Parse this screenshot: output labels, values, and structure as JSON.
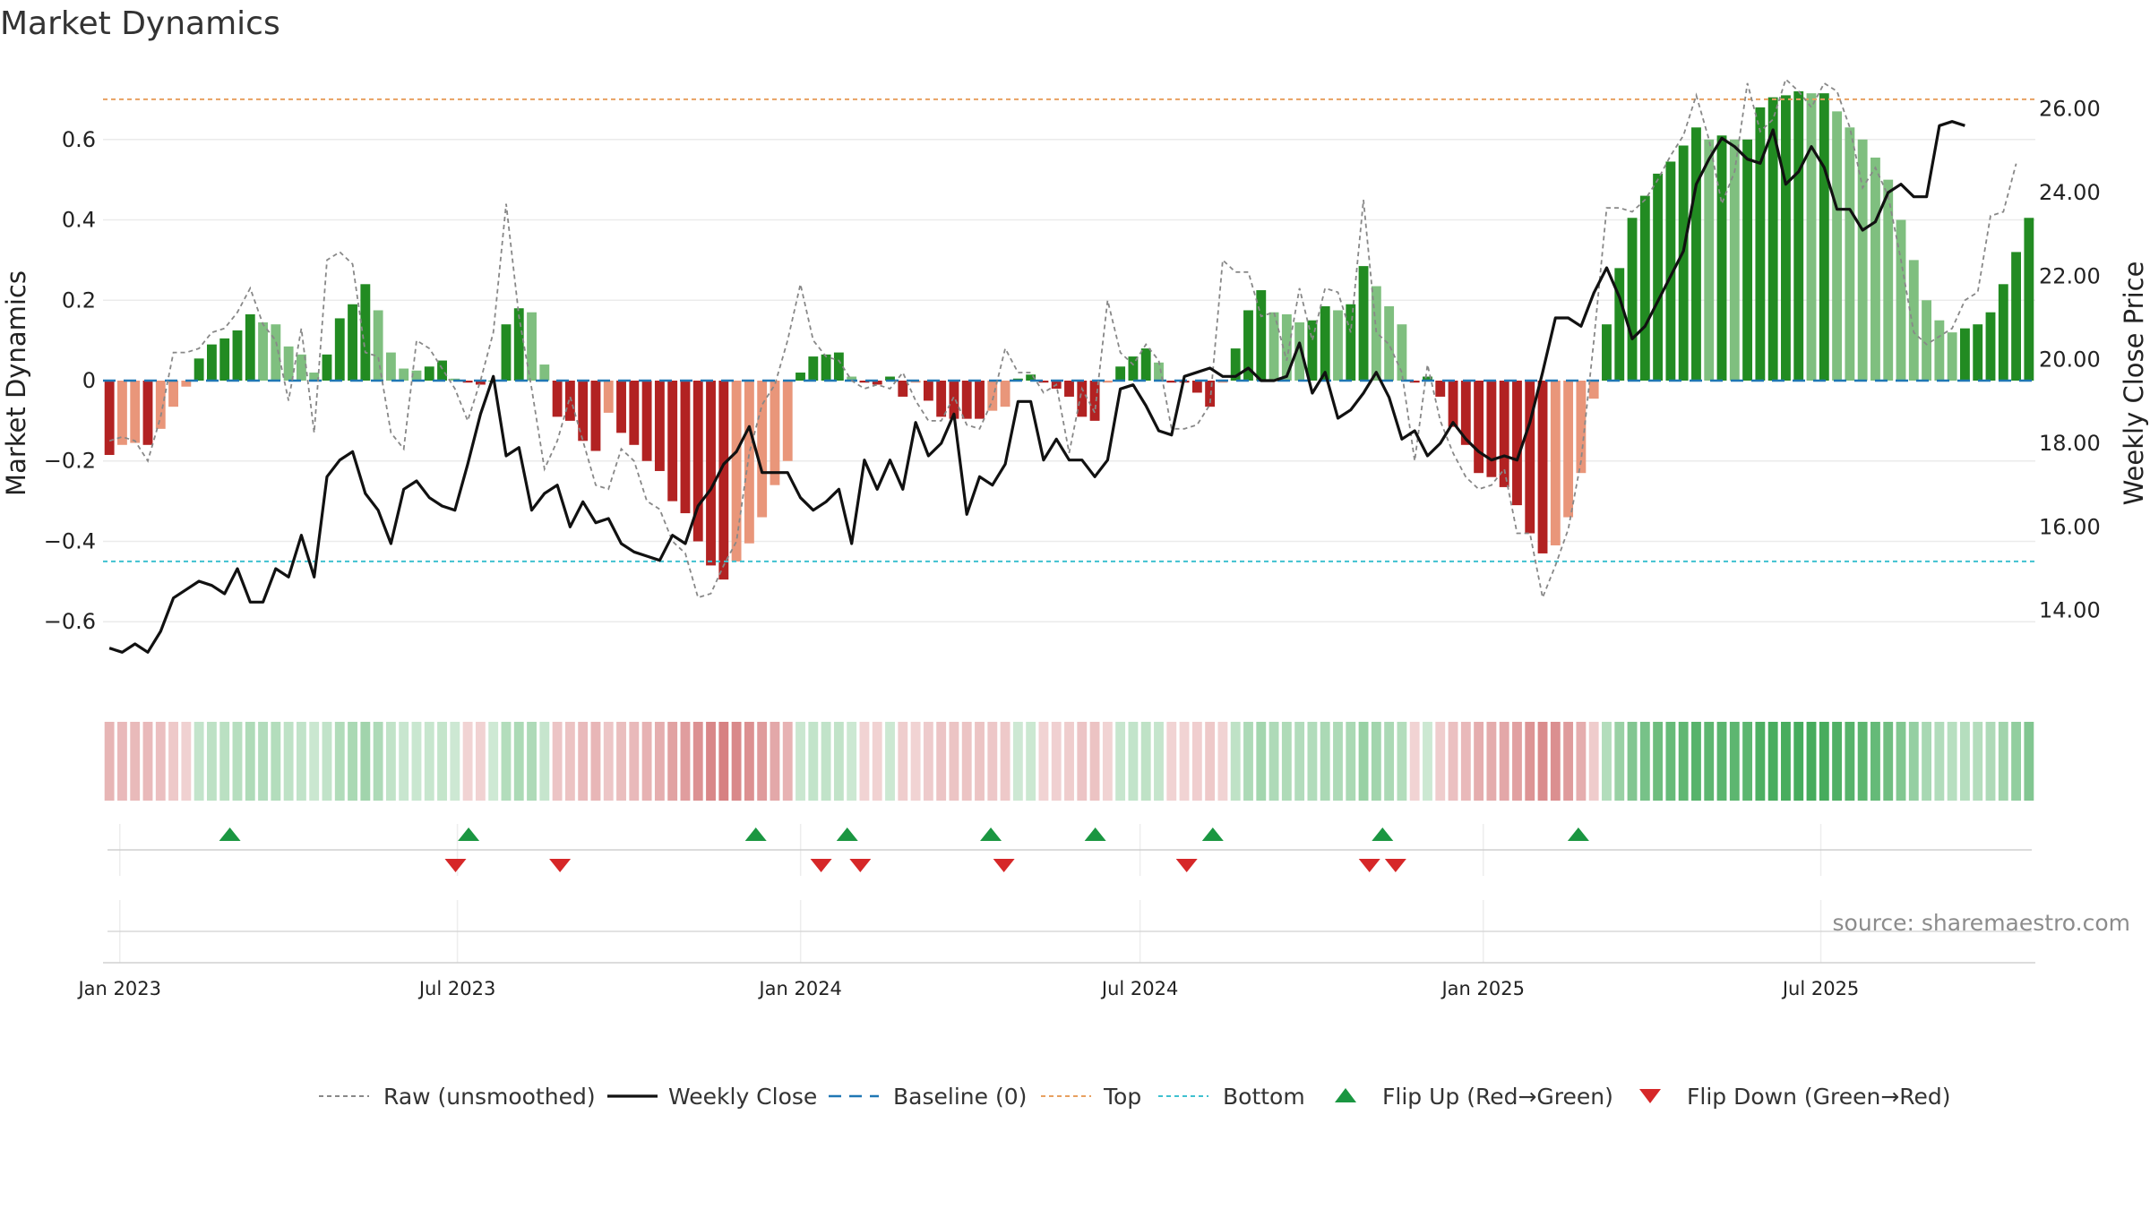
{
  "chart_data": {
    "type": "bar",
    "title": "Market Dynamics",
    "ylabel": "Market Dynamics",
    "y2label": "Weekly Close Price",
    "ylim": [
      -0.78,
      0.78
    ],
    "y2lim": [
      12.0,
      27.0
    ],
    "yticks": [
      -0.6,
      -0.4,
      -0.2,
      0,
      0.2,
      0.4,
      0.6
    ],
    "ytick_labels": [
      "−0.6",
      "−0.4",
      "−0.2",
      "0",
      "0.2",
      "0.4",
      "0.6"
    ],
    "y2ticks": [
      14,
      16,
      18,
      20,
      22,
      24,
      26
    ],
    "y2tick_labels": [
      "14.00",
      "16.00",
      "18.00",
      "20.00",
      "22.00",
      "24.00",
      "26.00"
    ],
    "x_start": "2022-12-23",
    "x_end": "2025-10-24",
    "x_ticks": [
      {
        "date": "2023-01-01",
        "label": "Jan 2023"
      },
      {
        "date": "2023-07-01",
        "label": "Jul 2023"
      },
      {
        "date": "2024-01-01",
        "label": "Jan 2024"
      },
      {
        "date": "2024-07-01",
        "label": "Jul 2024"
      },
      {
        "date": "2025-01-01",
        "label": "Jan 2025"
      },
      {
        "date": "2025-07-01",
        "label": "Jul 2025"
      }
    ],
    "top_level": 0.7,
    "bottom_level": -0.45,
    "source": "source: sharemaestro.com",
    "colors": {
      "up_strong": "#228B22",
      "up_weak": "#7FBF7F",
      "down_strong": "#B22222",
      "down_weak": "#E9967A",
      "close_line": "#111111",
      "raw_line": "#888888",
      "baseline": "#1f77b4",
      "top": "#e8a060",
      "bottom": "#3fc1d0",
      "flip_up": "#1a9641",
      "flip_down": "#d62728"
    },
    "legend": [
      {
        "key": "raw",
        "label": "Raw (unsmoothed)"
      },
      {
        "key": "close",
        "label": "Weekly Close"
      },
      {
        "key": "baseline",
        "label": "Baseline (0)"
      },
      {
        "key": "top",
        "label": "Top"
      },
      {
        "key": "bottom",
        "label": "Bottom"
      },
      {
        "key": "flip_up",
        "label": "Flip Up (Red→Green)"
      },
      {
        "key": "flip_down",
        "label": "Flip Down (Green→Red)"
      }
    ],
    "series": [
      {
        "name": "Market Dynamics",
        "values": [
          -0.185,
          -0.16,
          -0.155,
          -0.16,
          -0.12,
          -0.065,
          -0.015,
          0.055,
          0.09,
          0.105,
          0.125,
          0.165,
          0.145,
          0.14,
          0.085,
          0.065,
          0.02,
          0.065,
          0.155,
          0.19,
          0.24,
          0.175,
          0.07,
          0.03,
          0.025,
          0.035,
          0.05,
          0.005,
          -0.005,
          -0.01,
          0.0,
          0.14,
          0.18,
          0.17,
          0.04,
          -0.09,
          -0.1,
          -0.15,
          -0.175,
          -0.08,
          -0.13,
          -0.16,
          -0.2,
          -0.225,
          -0.3,
          -0.33,
          -0.4,
          -0.46,
          -0.495,
          -0.45,
          -0.405,
          -0.34,
          -0.26,
          -0.2,
          0.02,
          0.06,
          0.065,
          0.07,
          0.01,
          -0.005,
          -0.01,
          0.01,
          -0.04,
          -0.005,
          -0.05,
          -0.09,
          -0.095,
          -0.095,
          -0.095,
          -0.075,
          -0.065,
          0.005,
          0.015,
          -0.005,
          -0.02,
          -0.04,
          -0.09,
          -0.1,
          -0.005,
          0.035,
          0.06,
          0.08,
          0.045,
          -0.005,
          -0.005,
          -0.03,
          -0.065,
          -0.005,
          0.08,
          0.175,
          0.225,
          0.17,
          0.165,
          0.145,
          0.15,
          0.185,
          0.175,
          0.19,
          0.285,
          0.235,
          0.185,
          0.14,
          -0.005,
          0.01,
          -0.04,
          -0.115,
          -0.16,
          -0.23,
          -0.24,
          -0.265,
          -0.31,
          -0.38,
          -0.43,
          -0.41,
          -0.34,
          -0.23,
          -0.045,
          0.14,
          0.28,
          0.405,
          0.46,
          0.515,
          0.545,
          0.585,
          0.63,
          0.6,
          0.61,
          0.6,
          0.6,
          0.68,
          0.705,
          0.71,
          0.72,
          0.715,
          0.715,
          0.67,
          0.63,
          0.6,
          0.555,
          0.5,
          0.4,
          0.3,
          0.2,
          0.15,
          0.12,
          0.13,
          0.14,
          0.17,
          0.24,
          0.32,
          0.405
        ]
      },
      {
        "name": "Raw (unsmoothed)",
        "values": [
          -0.15,
          -0.14,
          -0.15,
          -0.2,
          -0.09,
          0.07,
          0.07,
          0.08,
          0.12,
          0.13,
          0.17,
          0.23,
          0.14,
          0.1,
          -0.05,
          0.13,
          -0.13,
          0.3,
          0.32,
          0.29,
          0.07,
          0.06,
          -0.13,
          -0.17,
          0.1,
          0.08,
          0.03,
          -0.02,
          -0.1,
          0.0,
          0.12,
          0.44,
          0.16,
          -0.02,
          -0.22,
          -0.15,
          -0.04,
          -0.15,
          -0.26,
          -0.27,
          -0.17,
          -0.2,
          -0.3,
          -0.32,
          -0.4,
          -0.43,
          -0.54,
          -0.53,
          -0.46,
          -0.4,
          -0.18,
          -0.06,
          -0.01,
          0.1,
          0.24,
          0.1,
          0.06,
          0.05,
          0.0,
          -0.02,
          -0.01,
          -0.02,
          0.02,
          -0.05,
          -0.1,
          -0.1,
          -0.04,
          -0.11,
          -0.12,
          -0.05,
          0.08,
          0.02,
          0.02,
          -0.03,
          -0.01,
          -0.18,
          -0.02,
          -0.08,
          0.2,
          0.07,
          0.04,
          0.09,
          0.05,
          -0.12,
          -0.12,
          -0.11,
          -0.06,
          0.3,
          0.27,
          0.27,
          0.16,
          0.17,
          0.05,
          0.23,
          0.1,
          0.23,
          0.22,
          0.12,
          0.45,
          0.12,
          0.09,
          0.02,
          -0.2,
          0.04,
          -0.1,
          -0.18,
          -0.24,
          -0.27,
          -0.26,
          -0.22,
          -0.38,
          -0.38,
          -0.54,
          -0.46,
          -0.37,
          -0.2,
          0.1,
          0.43,
          0.43,
          0.42,
          0.45,
          0.5,
          0.56,
          0.61,
          0.71,
          0.6,
          0.44,
          0.52,
          0.74,
          0.62,
          0.65,
          0.75,
          0.72,
          0.68,
          0.74,
          0.72,
          0.63,
          0.48,
          0.53,
          0.46,
          0.3,
          0.12,
          0.09,
          0.11,
          0.13,
          0.2,
          0.22,
          0.41,
          0.42,
          0.54
        ]
      },
      {
        "name": "Weekly Close",
        "values": [
          13.1,
          13.0,
          13.2,
          13.0,
          13.5,
          14.3,
          14.5,
          14.7,
          14.6,
          14.4,
          15.0,
          14.2,
          14.2,
          15.0,
          14.8,
          15.8,
          14.8,
          17.2,
          17.6,
          17.8,
          16.8,
          16.4,
          15.6,
          16.9,
          17.1,
          16.7,
          16.5,
          16.4,
          17.5,
          18.7,
          19.6,
          17.7,
          17.9,
          16.4,
          16.8,
          17.0,
          16.0,
          16.6,
          16.1,
          16.2,
          15.6,
          15.4,
          15.3,
          15.2,
          15.8,
          15.6,
          16.5,
          16.9,
          17.5,
          17.8,
          18.4,
          17.3,
          17.3,
          17.3,
          16.7,
          16.4,
          16.6,
          16.9,
          15.6,
          17.6,
          16.9,
          17.6,
          16.9,
          18.5,
          17.7,
          18.0,
          18.7,
          16.3,
          17.2,
          17.0,
          17.5,
          19.0,
          19.0,
          17.6,
          18.1,
          17.6,
          17.6,
          17.2,
          17.6,
          19.3,
          19.4,
          18.9,
          18.3,
          18.2,
          19.6,
          19.7,
          19.8,
          19.6,
          19.6,
          19.8,
          19.5,
          19.5,
          19.6,
          20.4,
          19.2,
          19.7,
          18.6,
          18.8,
          19.2,
          19.7,
          19.1,
          18.1,
          18.3,
          17.7,
          18.0,
          18.5,
          18.1,
          17.8,
          17.6,
          17.7,
          17.6,
          18.5,
          19.7,
          21.0,
          21.0,
          20.8,
          21.6,
          22.2,
          21.5,
          20.5,
          20.8,
          21.4,
          22.0,
          22.6,
          24.2,
          24.8,
          25.3,
          25.1,
          24.8,
          24.7,
          25.5,
          24.2,
          24.5,
          25.1,
          24.6,
          23.6,
          23.6,
          23.1,
          23.3,
          24.0,
          24.2,
          23.9,
          23.9,
          25.6,
          25.7,
          25.6
        ]
      }
    ],
    "strip_values": [
      -0.185,
      -0.16,
      -0.155,
      -0.16,
      -0.12,
      -0.065,
      -0.015,
      0.055,
      0.09,
      0.105,
      0.125,
      0.165,
      0.145,
      0.14,
      0.085,
      0.065,
      0.02,
      0.065,
      0.155,
      0.19,
      0.24,
      0.175,
      0.07,
      0.03,
      0.025,
      0.035,
      0.05,
      0.005,
      -0.005,
      -0.01,
      0.0,
      0.14,
      0.18,
      0.17,
      0.04,
      -0.09,
      -0.1,
      -0.15,
      -0.175,
      -0.08,
      -0.13,
      -0.16,
      -0.2,
      -0.225,
      -0.3,
      -0.33,
      -0.4,
      -0.46,
      -0.495,
      -0.45,
      -0.405,
      -0.34,
      -0.26,
      -0.2,
      0.02,
      0.06,
      0.065,
      0.07,
      0.01,
      -0.005,
      -0.01,
      0.01,
      -0.04,
      -0.005,
      -0.05,
      -0.09,
      -0.095,
      -0.095,
      -0.095,
      -0.075,
      -0.065,
      0.005,
      0.015,
      -0.005,
      -0.02,
      -0.04,
      -0.09,
      -0.1,
      -0.005,
      0.035,
      0.06,
      0.08,
      0.045,
      -0.005,
      -0.005,
      -0.03,
      -0.065,
      -0.005,
      0.08,
      0.175,
      0.225,
      0.17,
      0.165,
      0.145,
      0.15,
      0.185,
      0.175,
      0.19,
      0.285,
      0.235,
      0.185,
      0.14,
      -0.005,
      0.01,
      -0.04,
      -0.115,
      -0.16,
      -0.23,
      -0.24,
      -0.265,
      -0.31,
      -0.38,
      -0.43,
      -0.41,
      -0.34,
      -0.23,
      -0.045,
      0.14,
      0.28,
      0.405,
      0.46,
      0.515,
      0.545,
      0.585,
      0.63,
      0.6,
      0.61,
      0.6,
      0.6,
      0.68,
      0.705,
      0.71,
      0.72,
      0.715,
      0.715,
      0.67,
      0.63,
      0.6,
      0.555,
      0.5,
      0.4,
      0.3,
      0.2,
      0.15,
      0.12,
      0.13,
      0.14,
      0.17,
      0.24,
      0.32,
      0.405
    ],
    "flip_up_dates": [
      "2023-03-01",
      "2023-07-07",
      "2023-12-08",
      "2024-01-26",
      "2024-04-12",
      "2024-06-07",
      "2024-08-09",
      "2024-11-08",
      "2025-02-21"
    ],
    "flip_down_dates": [
      "2023-06-30",
      "2023-08-25",
      "2024-01-12",
      "2024-02-02",
      "2024-04-19",
      "2024-07-26",
      "2024-11-01",
      "2024-11-15"
    ]
  }
}
